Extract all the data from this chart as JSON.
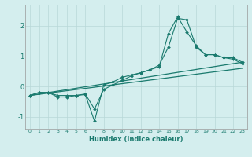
{
  "x": [
    0,
    1,
    2,
    3,
    4,
    5,
    6,
    7,
    8,
    9,
    10,
    11,
    12,
    13,
    14,
    15,
    16,
    17,
    18,
    19,
    20,
    21,
    22,
    23
  ],
  "line1": [
    -0.3,
    -0.2,
    -0.2,
    -0.3,
    -0.3,
    -0.3,
    -0.25,
    -0.75,
    -0.1,
    0.05,
    0.2,
    0.35,
    0.45,
    0.55,
    0.7,
    1.3,
    2.25,
    2.2,
    1.3,
    1.05,
    1.05,
    0.95,
    0.95,
    0.8
  ],
  "line2": [
    -0.3,
    -0.2,
    -0.2,
    -0.35,
    -0.35,
    -0.3,
    -0.27,
    -1.15,
    0.05,
    0.15,
    0.3,
    0.38,
    0.45,
    0.55,
    0.65,
    1.75,
    2.3,
    1.8,
    1.35,
    1.05,
    1.05,
    0.95,
    0.9,
    0.75
  ],
  "line3_x": [
    0,
    23
  ],
  "line3_y": [
    -0.3,
    0.8
  ],
  "line4_x": [
    0,
    23
  ],
  "line4_y": [
    -0.3,
    0.6
  ],
  "color": "#1a7a6e",
  "bg_color": "#d4eeee",
  "grid_color": "#b8d8d8",
  "xlabel": "Humidex (Indice chaleur)",
  "xlim": [
    -0.5,
    23.5
  ],
  "ylim": [
    -1.4,
    2.7
  ],
  "yticks": [
    -1,
    0,
    1,
    2
  ],
  "xticks": [
    0,
    1,
    2,
    3,
    4,
    5,
    6,
    7,
    8,
    9,
    10,
    11,
    12,
    13,
    14,
    15,
    16,
    17,
    18,
    19,
    20,
    21,
    22,
    23
  ]
}
